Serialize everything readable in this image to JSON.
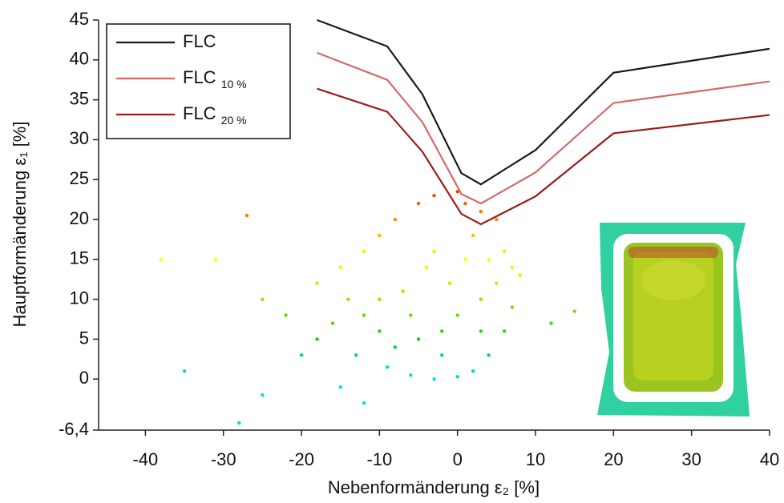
{
  "chart_data": [
    {
      "type": "line",
      "xlabel": "Nebenformänderung ε₂ [%]",
      "ylabel": "Hauptformänderung ε₁ [%]",
      "x": [
        -18,
        -9,
        -4.5,
        0.5,
        3,
        10,
        20,
        40
      ],
      "series": [
        {
          "name": "FLC",
          "color": "#1a1a1a",
          "values": [
            45,
            41.7,
            35.7,
            25.8,
            24.4,
            28.7,
            38.4,
            41.4
          ]
        },
        {
          "name": "FLC 10 %",
          "color": "#d46a6a",
          "values": [
            40.9,
            37.5,
            32.2,
            23.2,
            22,
            25.9,
            34.6,
            37.3
          ]
        },
        {
          "name": "FLC 20 %",
          "color": "#9b1c1c",
          "values": [
            36.4,
            33.5,
            28.5,
            20.7,
            19.4,
            22.9,
            30.8,
            33.1
          ]
        }
      ],
      "xlim": [
        -46,
        40
      ],
      "ylim": [
        -6.4,
        45
      ],
      "xticks": [
        -40,
        -30,
        -20,
        -10,
        0,
        10,
        20,
        30,
        40
      ],
      "yticks": [
        {
          "value": -6.4,
          "label": "-6,4"
        },
        0,
        5,
        10,
        15,
        20,
        25,
        30,
        35,
        40,
        45
      ],
      "legend": "upper left",
      "grid": false
    },
    {
      "type": "scatter",
      "xlim": [
        -46,
        40
      ],
      "ylim": [
        -6.4,
        45
      ],
      "colormap": [
        {
          "value": 0,
          "color": "#00e0e0"
        },
        {
          "value": 5,
          "color": "#10d010"
        },
        {
          "value": 10,
          "color": "#a0e000"
        },
        {
          "value": 15,
          "color": "#ffff00"
        },
        {
          "value": 20,
          "color": "#f09000"
        },
        {
          "value": 23,
          "color": "#e05000"
        }
      ],
      "x": [
        -28,
        -25,
        -20,
        -22,
        -25,
        -18,
        -15,
        -12,
        -10,
        -8,
        -5,
        -3,
        0,
        1,
        3,
        5,
        2,
        6,
        7,
        8,
        5,
        3,
        0,
        -2,
        -5,
        -8,
        -10,
        -12,
        -14,
        -16,
        -18,
        -13,
        -9,
        -6,
        -3,
        0,
        2,
        4,
        6,
        7,
        -1,
        -4,
        -7,
        -10,
        -3,
        1,
        4,
        -6,
        -2,
        3,
        -15,
        -12,
        -35,
        -38,
        -31,
        -27,
        15,
        12
      ],
      "y": [
        -5.5,
        -2,
        3,
        8,
        10,
        12,
        14,
        16,
        18,
        20,
        22,
        23,
        23.5,
        22,
        21,
        20,
        18,
        16,
        14,
        13,
        12,
        10,
        8,
        6,
        5,
        4,
        6,
        8,
        10,
        7,
        5,
        3,
        1.5,
        0.5,
        0,
        0.3,
        1,
        3,
        6,
        9,
        12,
        14,
        11,
        10,
        16,
        15,
        15,
        8,
        3,
        6,
        -1,
        -3,
        1,
        15,
        15,
        20.5,
        8.5,
        7
      ]
    }
  ]
}
